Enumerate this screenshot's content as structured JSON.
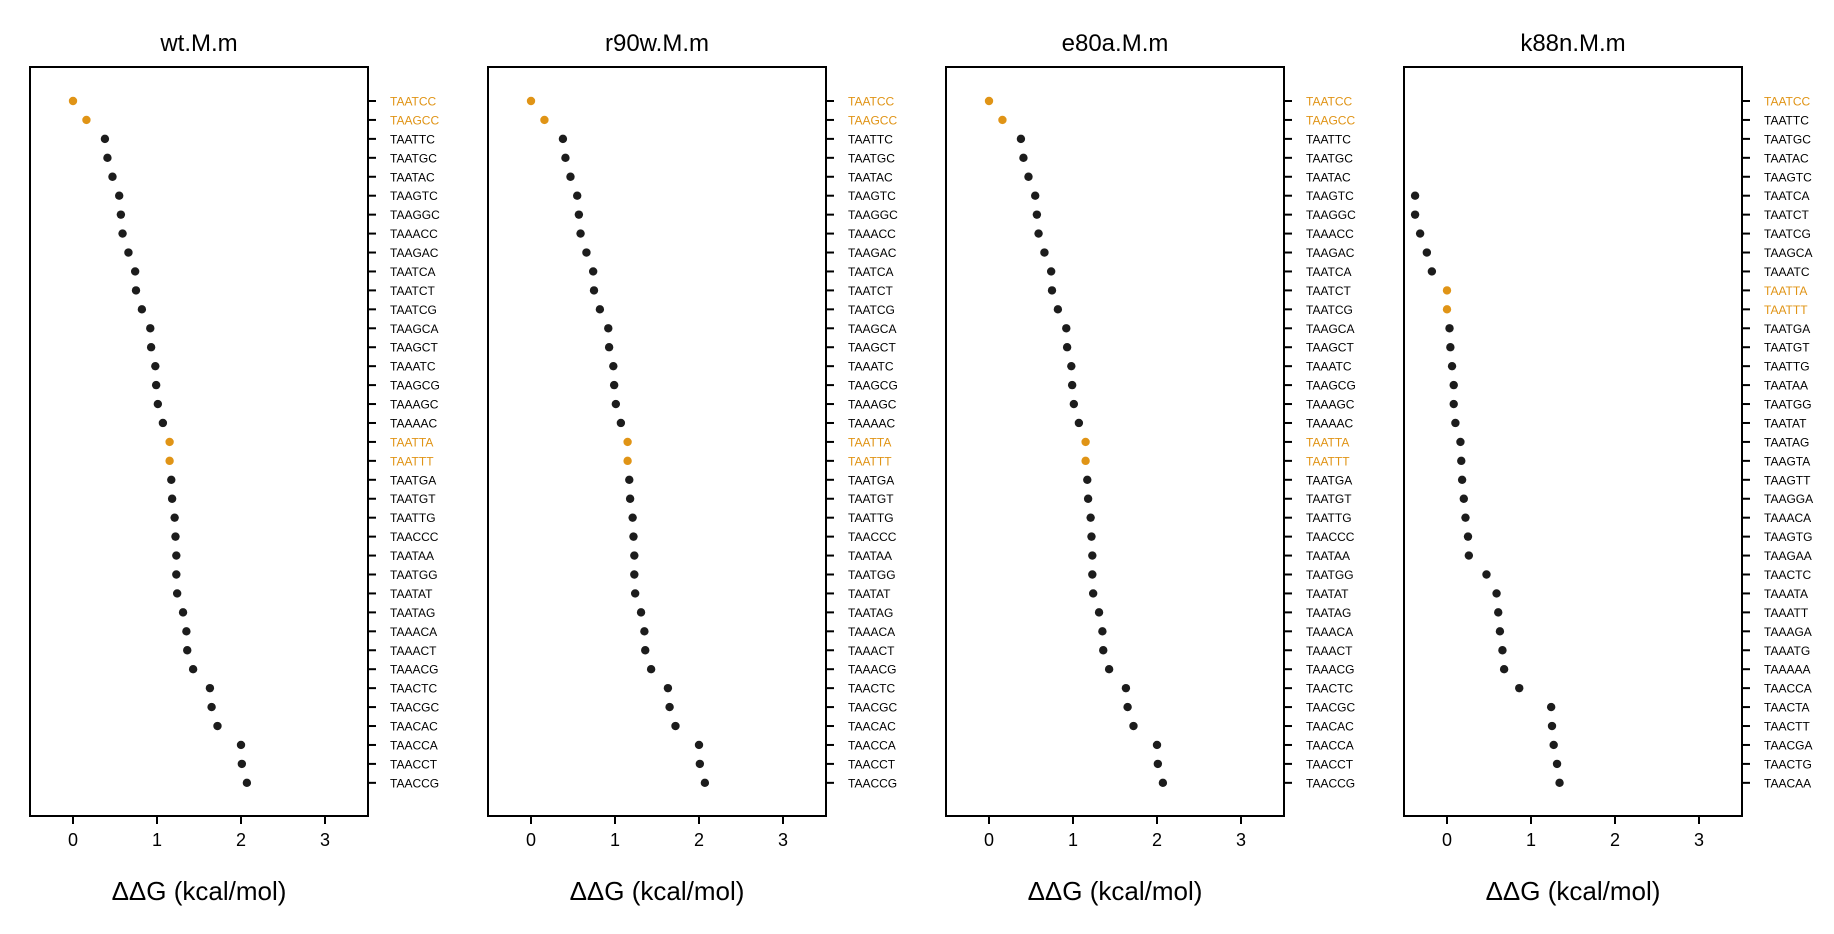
{
  "colors": {
    "highlight": "#e09416",
    "point": "#1c1c1c",
    "axis": "#000000",
    "label": "#000000",
    "background": "#ffffff"
  },
  "chart_data": [
    {
      "type": "scatter",
      "title": "wt.M.m",
      "xlabel": "ΔΔG (kcal/mol)",
      "ylabel": "",
      "xlim": [
        -0.5,
        3.5
      ],
      "xticks": [
        0,
        1,
        2,
        3
      ],
      "grid": false,
      "categories": [
        "TAATCC",
        "TAAGCC",
        "TAATTC",
        "TAATGC",
        "TAATAC",
        "TAAGTC",
        "TAAGGC",
        "TAAACC",
        "TAAGAC",
        "TAATCA",
        "TAATCT",
        "TAATCG",
        "TAAGCA",
        "TAAGCT",
        "TAAATC",
        "TAAGCG",
        "TAAAGC",
        "TAAAAC",
        "TAATTA",
        "TAATTT",
        "TAATGA",
        "TAATGT",
        "TAATTG",
        "TAACCC",
        "TAATAA",
        "TAATGG",
        "TAATAT",
        "TAATAG",
        "TAAACA",
        "TAAACT",
        "TAAACG",
        "TAACTC",
        "TAACGC",
        "TAACAC",
        "TAACCA",
        "TAACCT",
        "TAACCG"
      ],
      "values": [
        0.0,
        0.16,
        0.38,
        0.41,
        0.47,
        0.55,
        0.57,
        0.59,
        0.66,
        0.74,
        0.75,
        0.82,
        0.92,
        0.93,
        0.98,
        0.99,
        1.01,
        1.07,
        1.15,
        1.15,
        1.17,
        1.18,
        1.21,
        1.22,
        1.23,
        1.23,
        1.24,
        1.31,
        1.35,
        1.36,
        1.43,
        1.63,
        1.65,
        1.72,
        2.0,
        2.01,
        2.07
      ],
      "highlighted": [
        "TAATCC",
        "TAAGCC",
        "TAATTA",
        "TAATTT"
      ]
    },
    {
      "type": "scatter",
      "title": "r90w.M.m",
      "xlabel": "ΔΔG (kcal/mol)",
      "ylabel": "",
      "xlim": [
        -0.5,
        3.5
      ],
      "xticks": [
        0,
        1,
        2,
        3
      ],
      "grid": false,
      "categories": [
        "TAATCC",
        "TAAGCC",
        "TAATTC",
        "TAATGC",
        "TAATAC",
        "TAAGTC",
        "TAAGGC",
        "TAAACC",
        "TAAGAC",
        "TAATCA",
        "TAATCT",
        "TAATCG",
        "TAAGCA",
        "TAAGCT",
        "TAAATC",
        "TAAGCG",
        "TAAAGC",
        "TAAAAC",
        "TAATTA",
        "TAATTT",
        "TAATGA",
        "TAATGT",
        "TAATTG",
        "TAACCC",
        "TAATAA",
        "TAATGG",
        "TAATAT",
        "TAATAG",
        "TAAACA",
        "TAAACT",
        "TAAACG",
        "TAACTC",
        "TAACGC",
        "TAACAC",
        "TAACCA",
        "TAACCT",
        "TAACCG"
      ],
      "values": [
        0.0,
        0.16,
        0.38,
        0.41,
        0.47,
        0.55,
        0.57,
        0.59,
        0.66,
        0.74,
        0.75,
        0.82,
        0.92,
        0.93,
        0.98,
        0.99,
        1.01,
        1.07,
        1.15,
        1.15,
        1.17,
        1.18,
        1.21,
        1.22,
        1.23,
        1.23,
        1.24,
        1.31,
        1.35,
        1.36,
        1.43,
        1.63,
        1.65,
        1.72,
        2.0,
        2.01,
        2.07
      ],
      "highlighted": [
        "TAATCC",
        "TAAGCC",
        "TAATTA",
        "TAATTT"
      ]
    },
    {
      "type": "scatter",
      "title": "e80a.M.m",
      "xlabel": "ΔΔG (kcal/mol)",
      "ylabel": "",
      "xlim": [
        -0.5,
        3.5
      ],
      "xticks": [
        0,
        1,
        2,
        3
      ],
      "grid": false,
      "categories": [
        "TAATCC",
        "TAAGCC",
        "TAATTC",
        "TAATGC",
        "TAATAC",
        "TAAGTC",
        "TAAGGC",
        "TAAACC",
        "TAAGAC",
        "TAATCA",
        "TAATCT",
        "TAATCG",
        "TAAGCA",
        "TAAGCT",
        "TAAATC",
        "TAAGCG",
        "TAAAGC",
        "TAAAAC",
        "TAATTA",
        "TAATTT",
        "TAATGA",
        "TAATGT",
        "TAATTG",
        "TAACCC",
        "TAATAA",
        "TAATGG",
        "TAATAT",
        "TAATAG",
        "TAAACA",
        "TAAACT",
        "TAAACG",
        "TAACTC",
        "TAACGC",
        "TAACAC",
        "TAACCA",
        "TAACCT",
        "TAACCG"
      ],
      "values": [
        0.0,
        0.16,
        0.38,
        0.41,
        0.47,
        0.55,
        0.57,
        0.59,
        0.66,
        0.74,
        0.75,
        0.82,
        0.92,
        0.93,
        0.98,
        0.99,
        1.01,
        1.07,
        1.15,
        1.15,
        1.17,
        1.18,
        1.21,
        1.22,
        1.23,
        1.23,
        1.24,
        1.31,
        1.35,
        1.36,
        1.43,
        1.63,
        1.65,
        1.72,
        2.0,
        2.01,
        2.07
      ],
      "highlighted": [
        "TAATCC",
        "TAAGCC",
        "TAATTA",
        "TAATTT"
      ]
    },
    {
      "type": "scatter",
      "title": "k88n.M.m",
      "xlabel": "ΔΔG (kcal/mol)",
      "ylabel": "",
      "xlim": [
        -0.5,
        3.5
      ],
      "xticks": [
        0,
        1,
        2,
        3
      ],
      "grid": false,
      "categories": [
        "TAATCC",
        "TAATTC",
        "TAATGC",
        "TAATAC",
        "TAAGTC",
        "TAATCA",
        "TAATCT",
        "TAATCG",
        "TAAGCA",
        "TAAATC",
        "TAATTA",
        "TAATTT",
        "TAATGA",
        "TAATGT",
        "TAATTG",
        "TAATAA",
        "TAATGG",
        "TAATAT",
        "TAATAG",
        "TAAGTA",
        "TAAGTT",
        "TAAGGA",
        "TAAACA",
        "TAAGTG",
        "TAAGAA",
        "TAACTC",
        "TAAATA",
        "TAAATT",
        "TAAAGA",
        "TAAATG",
        "TAAAAA",
        "TAACCA",
        "TAACTA",
        "TAACTT",
        "TAACGA",
        "TAACTG",
        "TAACAA"
      ],
      "values": [
        null,
        null,
        null,
        null,
        null,
        -0.38,
        -0.38,
        -0.32,
        -0.24,
        -0.18,
        0.0,
        0.0,
        0.03,
        0.04,
        0.06,
        0.08,
        0.08,
        0.1,
        0.16,
        0.17,
        0.18,
        0.2,
        0.22,
        0.25,
        0.26,
        0.47,
        0.59,
        0.61,
        0.63,
        0.66,
        0.68,
        0.86,
        1.24,
        1.25,
        1.27,
        1.31,
        1.34
      ],
      "highlighted": [
        "TAATCC",
        "TAATTA",
        "TAATTT"
      ]
    }
  ]
}
